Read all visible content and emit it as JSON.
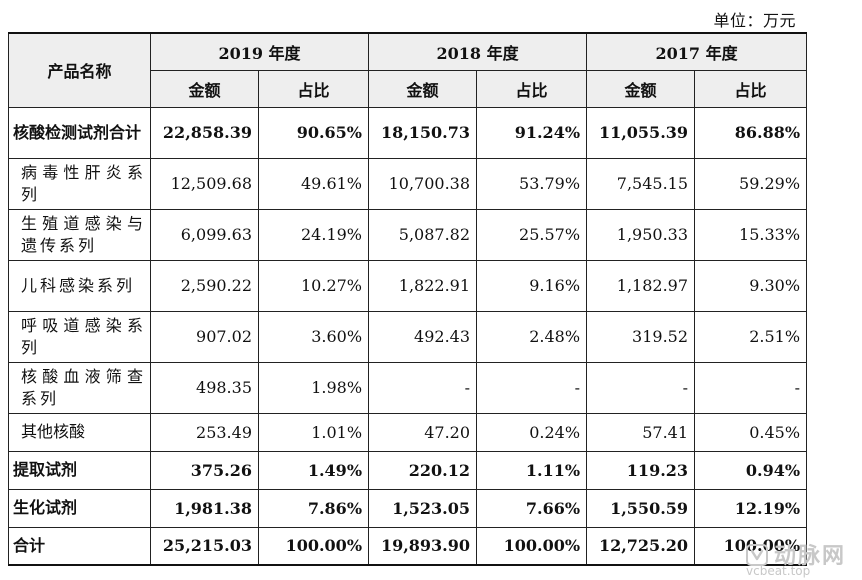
{
  "unit": "单位：万元",
  "header": {
    "product_name": "产品名称",
    "years": [
      "2019 年度",
      "2018 年度",
      "2017 年度"
    ],
    "amount": "金额",
    "ratio": "占比"
  },
  "rows": [
    {
      "name": "核酸检测试剂合计",
      "values": [
        "22,858.39",
        "90.65%",
        "18,150.73",
        "91.24%",
        "11,055.39",
        "86.88%"
      ]
    },
    {
      "name": "病毒性肝炎系列",
      "values": [
        "12,509.68",
        "49.61%",
        "10,700.38",
        "53.79%",
        "7,545.15",
        "59.29%"
      ]
    },
    {
      "name": "生殖道感染与遗传系列",
      "values": [
        "6,099.63",
        "24.19%",
        "5,087.82",
        "25.57%",
        "1,950.33",
        "15.33%"
      ]
    },
    {
      "name": "儿科感染系列",
      "values": [
        "2,590.22",
        "10.27%",
        "1,822.91",
        "9.16%",
        "1,182.97",
        "9.30%"
      ]
    },
    {
      "name": "呼吸道感染系列",
      "values": [
        "907.02",
        "3.60%",
        "492.43",
        "2.48%",
        "319.52",
        "2.51%"
      ]
    },
    {
      "name": "核酸血液筛查系列",
      "values": [
        "498.35",
        "1.98%",
        "-",
        "-",
        "-",
        "-"
      ]
    },
    {
      "name": "其他核酸",
      "values": [
        "253.49",
        "1.01%",
        "47.20",
        "0.24%",
        "57.41",
        "0.45%"
      ]
    },
    {
      "name": "提取试剂",
      "values": [
        "375.26",
        "1.49%",
        "220.12",
        "1.11%",
        "119.23",
        "0.94%"
      ]
    },
    {
      "name": "生化试剂",
      "values": [
        "1,981.38",
        "7.86%",
        "1,523.05",
        "7.66%",
        "1,550.59",
        "12.19%"
      ]
    },
    {
      "name": "合计",
      "values": [
        "25,215.03",
        "100.00%",
        "19,893.90",
        "100.00%",
        "12,725.20",
        "100.00%"
      ]
    }
  ],
  "watermark": {
    "cn": "动脉网",
    "en": "vcbeat.top"
  }
}
